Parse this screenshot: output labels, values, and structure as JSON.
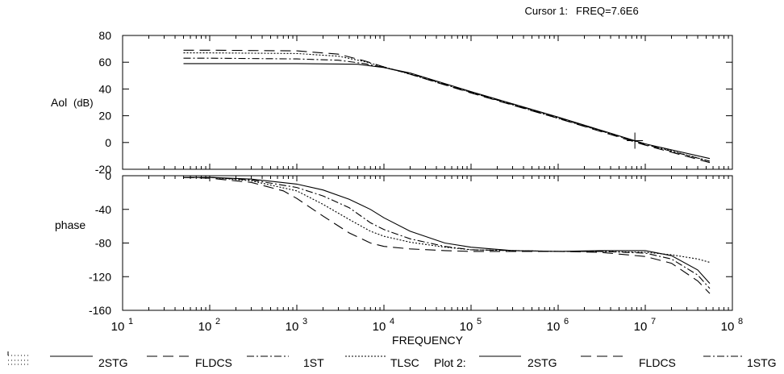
{
  "cursor": {
    "label": "Cursor 1:",
    "readout": "FREQ=7.6E6",
    "freq": 7600000
  },
  "chart_data": [
    {
      "type": "line",
      "panel": "gain",
      "ylabel_main": "Aol",
      "ylabel_unit": "(dB)",
      "xscale": "log",
      "xlim": [
        10,
        100000000
      ],
      "ylim": [
        -20,
        80
      ],
      "yticks": [
        "80",
        "60",
        "40",
        "20",
        "0",
        "-20"
      ],
      "series": [
        {
          "name": "2STG",
          "style": "solid",
          "x": [
            50,
            100,
            1000,
            5000,
            10000,
            20000,
            100000,
            1000000,
            10000000,
            55000000
          ],
          "y": [
            59,
            59,
            59,
            58.5,
            56,
            52,
            38,
            19,
            -1,
            -12
          ]
        },
        {
          "name": "FLDCS",
          "style": "dash",
          "x": [
            50,
            100,
            1000,
            3000,
            6000,
            10000,
            20000,
            100000,
            1000000,
            10000000,
            55000000
          ],
          "y": [
            69,
            69,
            68.5,
            66,
            61,
            56.5,
            51,
            37,
            18,
            -2,
            -15
          ]
        },
        {
          "name": "1ST",
          "style": "dashdot",
          "x": [
            50,
            100,
            1000,
            3000,
            6000,
            10000,
            20000,
            100000,
            1000000,
            10000000,
            55000000
          ],
          "y": [
            63,
            63,
            62.5,
            61.5,
            59,
            56,
            51.5,
            37.5,
            18.5,
            -1.5,
            -14
          ]
        },
        {
          "name": "TLSC",
          "style": "dot",
          "x": [
            50,
            100,
            1000,
            3000,
            6000,
            10000,
            20000,
            100000,
            1000000,
            10000000,
            55000000
          ],
          "y": [
            67,
            67,
            66.5,
            64.5,
            60.5,
            56.5,
            51,
            37.5,
            18,
            -1,
            -14
          ]
        }
      ]
    },
    {
      "type": "line",
      "panel": "phase",
      "ylabel_main": "phase",
      "xlabel": "FREQUENCY",
      "xscale": "log",
      "xlim": [
        10,
        100000000
      ],
      "ylim": [
        -160,
        0
      ],
      "yticks": [
        "0",
        "-40",
        "-80",
        "-120",
        "-160"
      ],
      "xtick_bases": [
        "10",
        "10",
        "10",
        "10",
        "10",
        "10",
        "10",
        "10"
      ],
      "xtick_exps": [
        "1",
        "2",
        "3",
        "4",
        "5",
        "6",
        "7",
        "8"
      ],
      "series": [
        {
          "name": "2STG",
          "style": "solid",
          "x": [
            50,
            100,
            300,
            1000,
            2000,
            4000,
            7000,
            10000,
            20000,
            50000,
            100000,
            300000,
            1000000,
            3000000,
            10000000,
            20000000,
            40000000,
            55000000
          ],
          "y": [
            -2,
            -2,
            -4,
            -10,
            -17,
            -28,
            -40,
            -50,
            -66,
            -80,
            -85,
            -89,
            -90,
            -89,
            -89,
            -95,
            -112,
            -128
          ]
        },
        {
          "name": "FLDCS",
          "style": "dash",
          "x": [
            50,
            100,
            300,
            700,
            1000,
            2000,
            4000,
            7000,
            10000,
            20000,
            50000,
            100000,
            1000000,
            3000000,
            10000000,
            20000000,
            40000000,
            55000000
          ],
          "y": [
            -2,
            -3,
            -8,
            -18,
            -27,
            -48,
            -68,
            -80,
            -84,
            -87,
            -89,
            -90,
            -90,
            -91,
            -96,
            -104,
            -125,
            -140
          ]
        },
        {
          "name": "1ST",
          "style": "dashdot",
          "x": [
            50,
            100,
            300,
            1000,
            2000,
            4000,
            7000,
            10000,
            20000,
            50000,
            100000,
            1000000,
            3000000,
            10000000,
            20000000,
            40000000,
            55000000
          ],
          "y": [
            -2,
            -2,
            -5,
            -14,
            -24,
            -38,
            -56,
            -64,
            -75,
            -84,
            -88,
            -90,
            -90,
            -92,
            -99,
            -118,
            -134
          ]
        },
        {
          "name": "TLSC",
          "style": "dot",
          "x": [
            50,
            100,
            300,
            1000,
            2000,
            4000,
            7000,
            10000,
            20000,
            50000,
            100000,
            1000000,
            3000000,
            10000000,
            20000000,
            40000000,
            55000000
          ],
          "y": [
            -2,
            -2,
            -6,
            -18,
            -34,
            -52,
            -66,
            -72,
            -79,
            -85,
            -88,
            -90,
            -90,
            -91,
            -94,
            -99,
            -103
          ]
        }
      ]
    }
  ],
  "legend": {
    "items": [
      {
        "label": "2STG",
        "style": "solid"
      },
      {
        "label": "FLDCS",
        "style": "dash"
      },
      {
        "label": "1ST",
        "style": "dashdot"
      },
      {
        "label": "TLSC",
        "style": "dot"
      }
    ],
    "plot2_label": "Plot 2:",
    "plot2_items": [
      {
        "label": "2STG",
        "style": "solid"
      },
      {
        "label": "FLDCS",
        "style": "dash"
      },
      {
        "label": "1STG",
        "style": "dashdot"
      }
    ]
  }
}
